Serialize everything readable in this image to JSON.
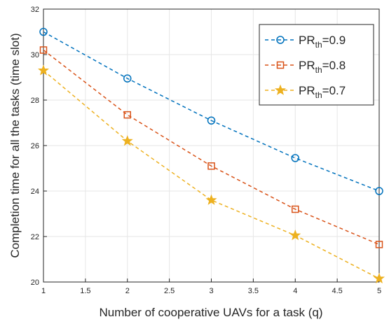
{
  "chart_data": {
    "type": "line",
    "xlabel": "Number of cooperative UAVs for a task (q)",
    "ylabel": "Completion time for all the tasks (time slot)",
    "x": [
      1,
      2,
      3,
      4,
      5
    ],
    "series": [
      {
        "name": "PR_{th}=0.9",
        "color": "#0072BD",
        "marker": "circle",
        "values": [
          31.0,
          28.95,
          27.1,
          25.45,
          24.0
        ]
      },
      {
        "name": "PR_{th}=0.8",
        "color": "#D95319",
        "marker": "square",
        "values": [
          30.2,
          27.35,
          25.1,
          23.2,
          21.65
        ]
      },
      {
        "name": "PR_{th}=0.7",
        "color": "#EDB120",
        "marker": "star",
        "values": [
          29.3,
          26.2,
          23.6,
          22.05,
          20.15
        ]
      }
    ],
    "xlim": [
      1,
      5
    ],
    "xticks": [
      1,
      1.5,
      2,
      2.5,
      3,
      3.5,
      4,
      4.5,
      5
    ],
    "ylim": [
      20,
      32
    ],
    "yticks": [
      20,
      22,
      24,
      26,
      28,
      30,
      32
    ],
    "grid": true,
    "legend": "upper right"
  }
}
